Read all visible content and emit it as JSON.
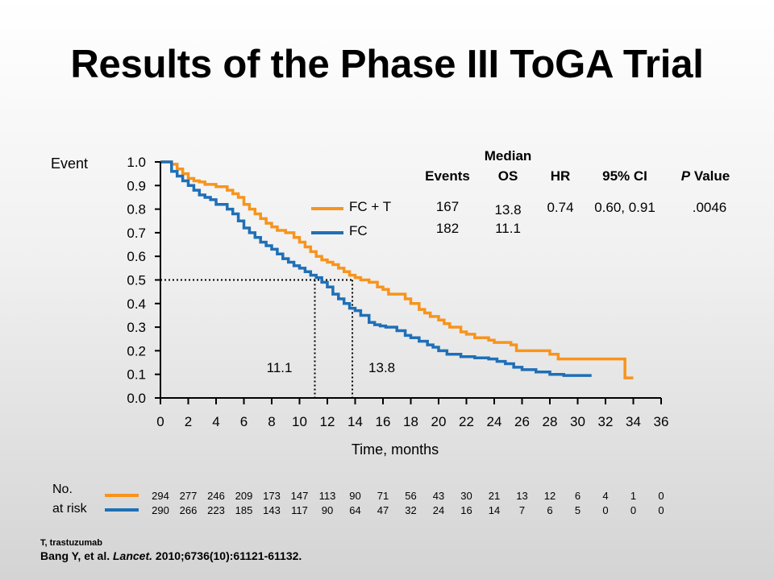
{
  "title": "Results of the Phase III ToGA Trial",
  "chart_data": {
    "type": "line",
    "y_axis_word": "Event",
    "xlabel": "Time, months",
    "xlim": [
      0,
      36
    ],
    "ylim": [
      0,
      1.0
    ],
    "x_ticks": [
      "0",
      "2",
      "4",
      "6",
      "8",
      "10",
      "12",
      "14",
      "16",
      "18",
      "20",
      "22",
      "24",
      "26",
      "28",
      "30",
      "32",
      "34",
      "36"
    ],
    "y_ticks": [
      "0.0",
      "0.1",
      "0.2",
      "0.3",
      "0.4",
      "0.5",
      "0.6",
      "0.7",
      "0.8",
      "0.9",
      "1.0"
    ],
    "series": [
      {
        "name": "FC + T",
        "color": "#f7941d",
        "x": [
          0,
          0.8,
          1.2,
          1.6,
          2.0,
          2.4,
          2.8,
          3.2,
          4.0,
          4.8,
          5.2,
          5.6,
          6.0,
          6.4,
          6.8,
          7.2,
          7.6,
          8.0,
          8.4,
          9.0,
          9.6,
          10.0,
          10.4,
          10.8,
          11.2,
          11.6,
          12.0,
          12.4,
          12.8,
          13.2,
          13.6,
          14.0,
          14.4,
          15.0,
          15.6,
          16.0,
          16.4,
          17.6,
          18.0,
          18.6,
          19.0,
          19.4,
          20.0,
          20.4,
          20.8,
          21.6,
          22.0,
          22.6,
          23.6,
          24.0,
          25.2,
          25.6,
          27.0,
          28.0,
          28.6,
          31.0,
          33.4,
          34.0
        ],
        "y": [
          1.0,
          0.99,
          0.97,
          0.95,
          0.93,
          0.92,
          0.915,
          0.905,
          0.895,
          0.88,
          0.865,
          0.85,
          0.82,
          0.8,
          0.78,
          0.76,
          0.74,
          0.725,
          0.71,
          0.7,
          0.68,
          0.66,
          0.64,
          0.62,
          0.6,
          0.585,
          0.575,
          0.565,
          0.55,
          0.535,
          0.52,
          0.51,
          0.5,
          0.49,
          0.47,
          0.46,
          0.44,
          0.42,
          0.4,
          0.375,
          0.36,
          0.345,
          0.33,
          0.315,
          0.3,
          0.28,
          0.27,
          0.255,
          0.245,
          0.235,
          0.225,
          0.2,
          0.2,
          0.185,
          0.165,
          0.165,
          0.085,
          0.085
        ]
      },
      {
        "name": "FC",
        "color": "#1f6fb7",
        "x": [
          0,
          0.8,
          1.2,
          1.6,
          2.0,
          2.4,
          2.8,
          3.2,
          3.6,
          4.0,
          4.8,
          5.2,
          5.6,
          6.0,
          6.4,
          6.8,
          7.2,
          7.6,
          8.0,
          8.4,
          8.8,
          9.2,
          9.6,
          10.0,
          10.4,
          10.8,
          11.2,
          11.6,
          12.0,
          12.4,
          12.8,
          13.2,
          13.6,
          14.0,
          14.4,
          15.0,
          15.4,
          15.8,
          16.2,
          17.0,
          17.6,
          18.0,
          18.6,
          19.2,
          19.6,
          20.0,
          20.6,
          21.6,
          22.6,
          23.6,
          24.2,
          24.8,
          25.4,
          26.0,
          27.0,
          28.0,
          29.0,
          31.0
        ],
        "y": [
          1.0,
          0.96,
          0.94,
          0.92,
          0.9,
          0.88,
          0.86,
          0.85,
          0.84,
          0.82,
          0.8,
          0.78,
          0.75,
          0.72,
          0.7,
          0.68,
          0.66,
          0.645,
          0.63,
          0.61,
          0.59,
          0.575,
          0.56,
          0.55,
          0.535,
          0.52,
          0.51,
          0.49,
          0.47,
          0.44,
          0.42,
          0.4,
          0.38,
          0.37,
          0.35,
          0.32,
          0.31,
          0.305,
          0.3,
          0.285,
          0.265,
          0.255,
          0.24,
          0.225,
          0.215,
          0.2,
          0.185,
          0.175,
          0.17,
          0.165,
          0.155,
          0.145,
          0.13,
          0.12,
          0.11,
          0.1,
          0.095,
          0.095
        ]
      }
    ],
    "medians": {
      "value_fc": 11.1,
      "value_fct": 13.8,
      "level": 0.5,
      "label_fc": "11.1",
      "label_fct": "13.8"
    },
    "legend_position": "inside-top-right"
  },
  "table": {
    "header_top": "Median",
    "headers": {
      "events": "Events",
      "os": "OS",
      "hr": "HR",
      "ci": "95% CI",
      "p_italic": "P",
      "p_rest": " Value"
    },
    "rows": [
      {
        "events": "167",
        "os": "13.8",
        "hr": "0.74",
        "ci": "0.60, 0.91",
        "p": ".0046"
      },
      {
        "events": "182",
        "os": "11.1",
        "hr": "",
        "ci": "",
        "p": ""
      }
    ]
  },
  "legend": [
    {
      "label": "FC + T",
      "color": "#f7941d"
    },
    {
      "label": "FC",
      "color": "#1f6fb7"
    }
  ],
  "risk": {
    "label_line1": "No.",
    "label_line2": "at risk",
    "fct": [
      "294",
      "277",
      "246",
      "209",
      "173",
      "147",
      "113",
      "90",
      "71",
      "56",
      "43",
      "30",
      "21",
      "13",
      "12",
      "6",
      "4",
      "1",
      "0"
    ],
    "fc": [
      "290",
      "266",
      "223",
      "185",
      "143",
      "117",
      "90",
      "64",
      "47",
      "32",
      "24",
      "16",
      "14",
      "7",
      "6",
      "5",
      "0",
      "0",
      "0"
    ]
  },
  "footnote": "T, trastuzumab",
  "citation": {
    "authors": "Bang Y, et al. ",
    "journal": "Lancet.",
    "rest": " 2010;6736(10):61121-61132."
  }
}
